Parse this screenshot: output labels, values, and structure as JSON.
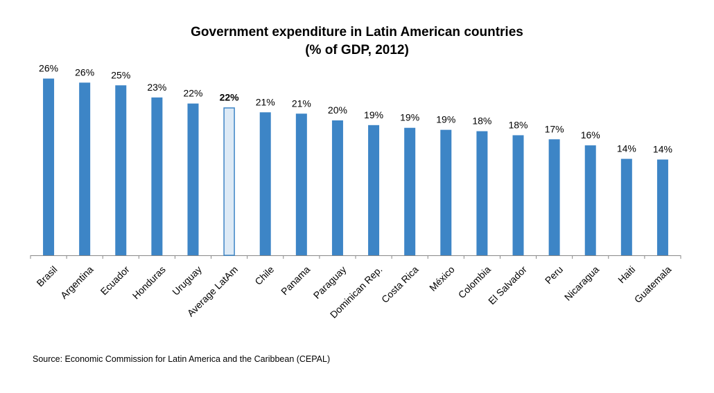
{
  "title_line1": "Government expenditure in Latin American countries",
  "title_line2": "(% of GDP, 2012)",
  "source": "Source: Economic Commission for Latin America and the Caribbean (CEPAL)",
  "colors": {
    "bar": "#3d85c6",
    "highlight_fill": "#ddeaf6",
    "highlight_stroke": "#3d85c6",
    "axis": "#888888"
  },
  "chart_data": {
    "type": "bar",
    "title": "Government expenditure in Latin American countries (% of GDP, 2012)",
    "categories": [
      "Brasil",
      "Argentina",
      "Ecuador",
      "Honduras",
      "Uruguay",
      "Average LatAm",
      "Chile",
      "Panama",
      "Paraguay",
      "Dominican Rep.",
      "Costa Rica",
      "México",
      "Colombia",
      "El Salvador",
      "Peru",
      "Nicaragua",
      "Haiti",
      "Guatemala"
    ],
    "values": [
      26.2,
      25.6,
      25.2,
      23.4,
      22.5,
      21.9,
      21.2,
      21.0,
      20.0,
      19.3,
      18.9,
      18.6,
      18.4,
      17.8,
      17.2,
      16.3,
      14.3,
      14.2
    ],
    "labels": [
      "26%",
      "26%",
      "25%",
      "23%",
      "22%",
      "22%",
      "21%",
      "21%",
      "20%",
      "19%",
      "19%",
      "19%",
      "18%",
      "18%",
      "17%",
      "16%",
      "14%",
      "14%"
    ],
    "highlight_index": 5,
    "ylim": [
      0,
      28
    ],
    "grid": false,
    "y_axis_shown": false
  }
}
